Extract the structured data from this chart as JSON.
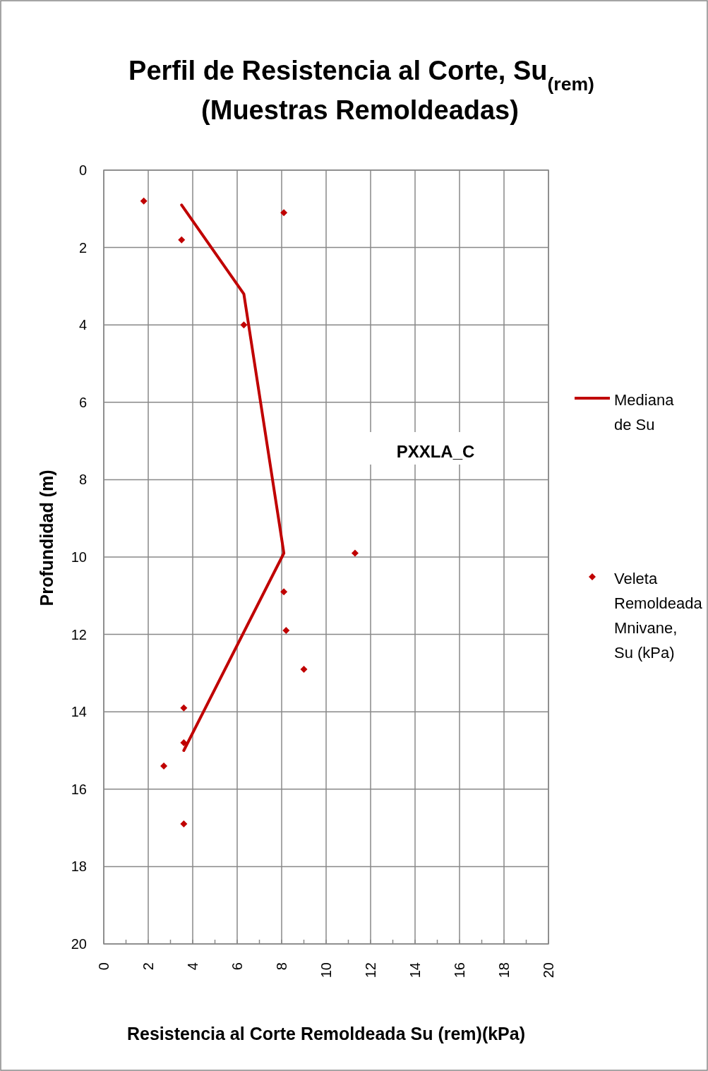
{
  "chart_data": {
    "type": "scatter",
    "title": "Perfil de Resistencia al Corte, Su$_{(rem)}$",
    "subtitle": "(Muestras Remoldeadas)",
    "xlabel": "Resistencia al Corte Remoldeada Su (rem)(kPa)",
    "ylabel": "Profundidad (m)",
    "xlim": [
      0,
      20
    ],
    "ylim": [
      20,
      0
    ],
    "xticks": [
      0,
      {
        "value": 1,
        "label": null
      },
      2,
      {
        "value": 3,
        "label": null
      },
      4,
      {
        "value": 5,
        "label": null
      },
      6,
      {
        "value": 7,
        "label": null
      },
      8,
      {
        "value": 9,
        "label": null
      },
      10,
      {
        "value": 11,
        "label": null
      },
      12,
      {
        "value": 13,
        "label": null
      },
      14,
      {
        "value": 15,
        "label": null
      },
      16,
      {
        "value": 17,
        "label": null
      },
      18,
      {
        "value": 19,
        "label": null
      },
      20
    ],
    "yticks": [
      0,
      2,
      4,
      6,
      8,
      10,
      12,
      14,
      16,
      18,
      20
    ],
    "grid": true,
    "legend": "right",
    "annotations": [
      "PXXLA_C"
    ],
    "series": [
      {
        "name": "Mediana de Su",
        "type": "line",
        "color": "#c00000",
        "marker": "none",
        "line_style": "solid",
        "x": [
          3.5,
          6.3,
          8.1,
          3.6
        ],
        "values": [
          0.9,
          3.2,
          9.9,
          15
        ]
      },
      {
        "name": "Veleta Remoldeada Mnivane, Su (kPa)",
        "color": "#c00000",
        "marker": "diamond",
        "x": [
          1.8,
          8.1,
          3.5,
          6.3,
          11.3,
          8.1,
          8.2,
          9,
          3.6,
          3.6,
          2.7,
          3.6
        ],
        "values": [
          0.8,
          1.1,
          1.8,
          4,
          9.9,
          10.9,
          11.9,
          12.9,
          13.9,
          14.8,
          15.4,
          16.9
        ]
      }
    ]
  }
}
